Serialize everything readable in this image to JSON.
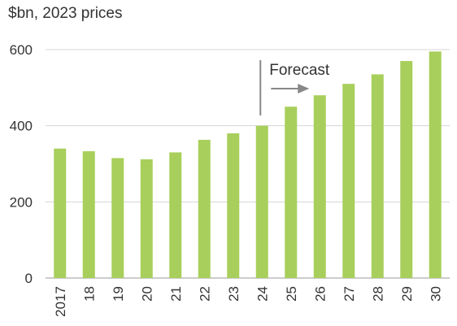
{
  "chart_data": {
    "type": "bar",
    "unit_label": "$bn, 2023 prices",
    "categories": [
      "2017",
      "18",
      "19",
      "20",
      "21",
      "22",
      "23",
      "24",
      "25",
      "26",
      "27",
      "28",
      "29",
      "30"
    ],
    "values": [
      340,
      333,
      315,
      312,
      330,
      363,
      380,
      400,
      450,
      480,
      510,
      535,
      570,
      595
    ],
    "ylim": [
      0,
      640
    ],
    "yticks": [
      0,
      200,
      400,
      600
    ],
    "grid": true,
    "annotation": {
      "text": "Forecast",
      "at_category": "24"
    },
    "colors": {
      "bar": "#A8CF5B",
      "grid": "#D4D4D4",
      "axis": "#999999",
      "annotation": "#888888",
      "text": "#333333"
    }
  }
}
